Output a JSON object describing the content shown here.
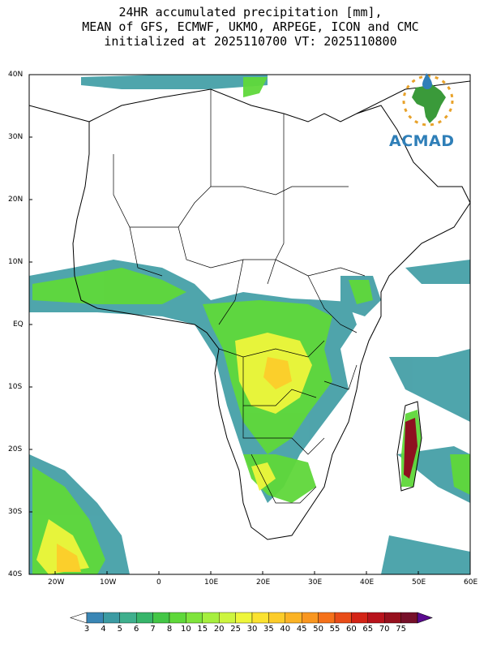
{
  "title": {
    "line1": "24HR accumulated precipitation [mm],",
    "line2": "MEAN of GFS, ECMWF, UKMO, ARPEGE, ICON and CMC",
    "line3": "initialized at 2025110700 VT: 2025110800"
  },
  "logo": {
    "text": "ACMAD",
    "icon": "acmad-africa-logo"
  },
  "map": {
    "lat_ticks": [
      "40N",
      "30N",
      "20N",
      "10N",
      "EQ",
      "10S",
      "20S",
      "30S",
      "40S"
    ],
    "lon_ticks": [
      "20W",
      "10W",
      "0",
      "10E",
      "20E",
      "30E",
      "40E",
      "50E",
      "60E"
    ]
  },
  "colorbar": {
    "labels": [
      "3",
      "4",
      "5",
      "6",
      "7",
      "8",
      "10",
      "15",
      "20",
      "25",
      "30",
      "35",
      "40",
      "45",
      "50",
      "55",
      "60",
      "65",
      "70",
      "75"
    ],
    "colors": [
      "#3a86b5",
      "#3c9ba3",
      "#3faf8d",
      "#37b56a",
      "#43c646",
      "#5fd83a",
      "#7fe43c",
      "#a6ef3e",
      "#cdf53f",
      "#eef63b",
      "#fbe230",
      "#fccc2a",
      "#fbb325",
      "#f9961f",
      "#f5711a",
      "#e84c18",
      "#d32416",
      "#b8131c",
      "#96101d",
      "#76102a",
      "#5a0a8f"
    ]
  },
  "colors": {
    "land_outline": "#000000",
    "rain_light": "#3a86b5",
    "rain_moderate": "#7fe43c",
    "rain_heavy": "#fccc2a"
  }
}
